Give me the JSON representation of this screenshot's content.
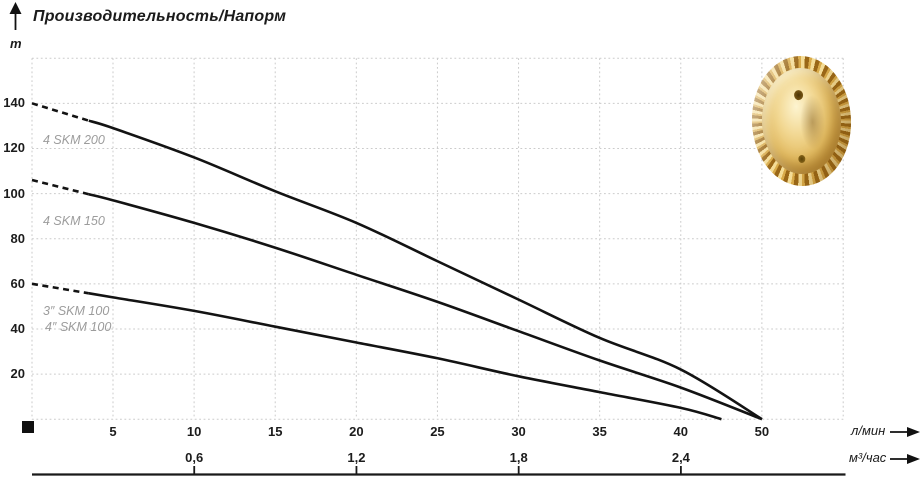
{
  "title": "Производительность/Напорм",
  "y_axis": {
    "unit_label": "m",
    "tick_labels": [
      "20",
      "40",
      "60",
      "80",
      "100",
      "120",
      "140"
    ]
  },
  "x_axis_primary": {
    "unit_label": "л/мин",
    "tick_labels": [
      "5",
      "10",
      "15",
      "20",
      "25",
      "30",
      "35",
      "40",
      "50"
    ]
  },
  "x_axis_secondary": {
    "unit_label": "м³/час",
    "tick_labels": [
      "0,6",
      "1,2",
      "1,8",
      "2,4"
    ]
  },
  "curve_labels": [
    "4 SKM 200",
    "4 SKM 150",
    "3″ SKM 100",
    "4″ SKM 100"
  ],
  "impeller_image": "brass-pump-impeller",
  "colors": {
    "curve": "#131313",
    "grid": "#cbcbcb",
    "axis_text": "#1c1c1c",
    "label_gray": "#9c9c9c",
    "axis_line": "#1a1a1a",
    "gold_light": "#f4dc96",
    "gold_mid": "#d9ab4a",
    "gold_dark": "#9a6716"
  },
  "chart_data": {
    "type": "line",
    "title": "Производительность/Напорм",
    "ylabel": "m",
    "xlabel_primary": "л/мин",
    "xlabel_secondary": "м³/час",
    "ylim": [
      0,
      160
    ],
    "y_ticks": [
      20,
      40,
      60,
      80,
      100,
      120,
      140
    ],
    "x_ticks_lmin": [
      5,
      10,
      15,
      20,
      25,
      30,
      35,
      40,
      50
    ],
    "x_ticks_m3h": [
      0.6,
      1.2,
      1.8,
      2.4
    ],
    "m3h_aligned_with_lmin": [
      10,
      20,
      30,
      40
    ],
    "grid": true,
    "dashed_until_q": 3.5,
    "series": [
      {
        "name": "4 SKM 200",
        "points": [
          {
            "q": 0,
            "h": 140
          },
          {
            "q": 5,
            "h": 129
          },
          {
            "q": 10,
            "h": 116
          },
          {
            "q": 15,
            "h": 101
          },
          {
            "q": 20,
            "h": 87
          },
          {
            "q": 25,
            "h": 70
          },
          {
            "q": 30,
            "h": 53
          },
          {
            "q": 35,
            "h": 36
          },
          {
            "q": 40,
            "h": 22
          },
          {
            "q": 50,
            "h": 0
          }
        ]
      },
      {
        "name": "4 SKM 150",
        "points": [
          {
            "q": 0,
            "h": 106
          },
          {
            "q": 5,
            "h": 97
          },
          {
            "q": 10,
            "h": 87
          },
          {
            "q": 15,
            "h": 76
          },
          {
            "q": 20,
            "h": 64
          },
          {
            "q": 25,
            "h": 52
          },
          {
            "q": 30,
            "h": 39
          },
          {
            "q": 35,
            "h": 26
          },
          {
            "q": 40,
            "h": 14
          },
          {
            "q": 50,
            "h": 0
          }
        ]
      },
      {
        "name": "3″ SKM 100 / 4″ SKM 100",
        "points": [
          {
            "q": 0,
            "h": 60
          },
          {
            "q": 5,
            "h": 54
          },
          {
            "q": 10,
            "h": 48
          },
          {
            "q": 15,
            "h": 41
          },
          {
            "q": 20,
            "h": 34
          },
          {
            "q": 25,
            "h": 27
          },
          {
            "q": 30,
            "h": 19
          },
          {
            "q": 35,
            "h": 12
          },
          {
            "q": 40,
            "h": 5
          },
          {
            "q": 45,
            "h": 0
          }
        ]
      }
    ]
  }
}
